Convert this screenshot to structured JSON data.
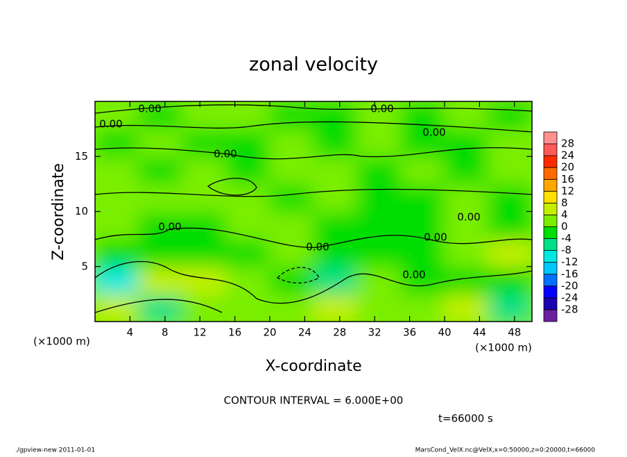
{
  "chart_data": {
    "type": "contour",
    "title": "zonal velocity",
    "x_label": "X-coordinate",
    "y_label": "Z-coordinate",
    "x_unit": "(×1000 m)",
    "y_unit": "(×1000 m)",
    "xlim": [
      0,
      50
    ],
    "ylim": [
      0,
      20
    ],
    "xticks": [
      4,
      8,
      12,
      16,
      20,
      24,
      28,
      32,
      36,
      40,
      44,
      48
    ],
    "yticks": [
      5,
      10,
      15
    ],
    "x": [
      2.5,
      7.5,
      12.5,
      17.5,
      22.5,
      27.5,
      32.5,
      37.5,
      42.5,
      47.5
    ],
    "z": [
      1.25,
      3.75,
      6.25,
      8.75,
      11.25,
      13.75,
      16.25,
      18.75
    ],
    "values": [
      [
        4,
        -5,
        3,
        2,
        0,
        4,
        2,
        1,
        5,
        -5
      ],
      [
        -9,
        4,
        6,
        3,
        -3,
        -7,
        1,
        -3,
        -2,
        -1
      ],
      [
        -2,
        -1,
        -3,
        -1,
        1,
        -3,
        -1,
        -2,
        0,
        5
      ],
      [
        1,
        -2,
        -1,
        1,
        2,
        -1,
        -2,
        -1,
        1,
        -1
      ],
      [
        2,
        1,
        1,
        0,
        -1,
        1,
        -1,
        -2,
        1,
        -1
      ],
      [
        1,
        -1,
        1,
        -1,
        0,
        1,
        -1,
        1,
        -1,
        1
      ],
      [
        -1,
        1,
        -1,
        -1,
        1,
        -1,
        1,
        -1,
        -1,
        1
      ],
      [
        1,
        -1,
        1,
        1,
        -1,
        -1,
        1,
        -1,
        1,
        -1
      ]
    ],
    "colorbar": {
      "levels": [
        -28,
        -24,
        -20,
        -16,
        -12,
        -8,
        -4,
        0,
        4,
        8,
        12,
        16,
        20,
        24,
        28
      ],
      "colors": [
        "#6a1fa0",
        "#1a00b0",
        "#0000ff",
        "#0070ff",
        "#00c8ff",
        "#00e8e0",
        "#00e088",
        "#00dd00",
        "#7aee00",
        "#c4f000",
        "#ffe000",
        "#ffa800",
        "#ff6a00",
        "#ff2a00",
        "#ff5a5a",
        "#ff9090"
      ]
    },
    "contour_labels": [
      "0.00",
      "0.00",
      "0.00",
      "0.00",
      "0.00",
      "0.00",
      "0.00",
      "0.00",
      "0.00",
      "0.00"
    ],
    "contour_interval": "CONTOUR INTERVAL = 6.000E+00",
    "time_label": "t=66000 s",
    "footer_left": "./gpview-new   2011-01-01",
    "footer_right": "MarsCond_VelX.nc@VelX,x=0:50000,z=0:20000,t=66000"
  }
}
